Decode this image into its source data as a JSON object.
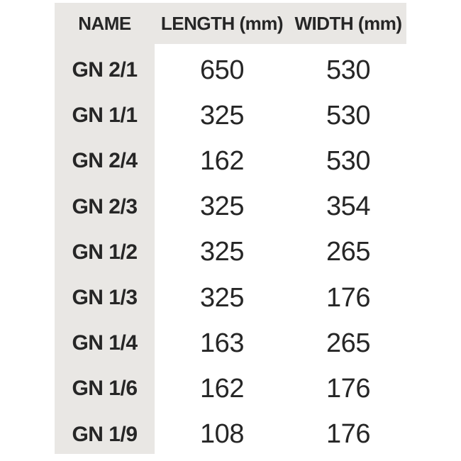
{
  "chart_data": {
    "type": "table",
    "columns": [
      "NAME",
      "LENGTH (mm)",
      "WIDTH (mm)"
    ],
    "rows": [
      {
        "name": "GN 2/1",
        "length": "650",
        "width": "530"
      },
      {
        "name": "GN 1/1",
        "length": "325",
        "width": "530"
      },
      {
        "name": "GN 2/4",
        "length": "162",
        "width": "530"
      },
      {
        "name": "GN 2/3",
        "length": "325",
        "width": "354"
      },
      {
        "name": "GN 1/2",
        "length": "325",
        "width": "265"
      },
      {
        "name": "GN 1/3",
        "length": "325",
        "width": "176"
      },
      {
        "name": "GN 1/4",
        "length": "163",
        "width": "265"
      },
      {
        "name": "GN 1/6",
        "length": "162",
        "width": "176"
      },
      {
        "name": "GN 1/9",
        "length": "108",
        "width": "176"
      }
    ]
  },
  "colors": {
    "band_background": "#e9e7e4",
    "text": "#262626",
    "page_background": "#ffffff"
  }
}
